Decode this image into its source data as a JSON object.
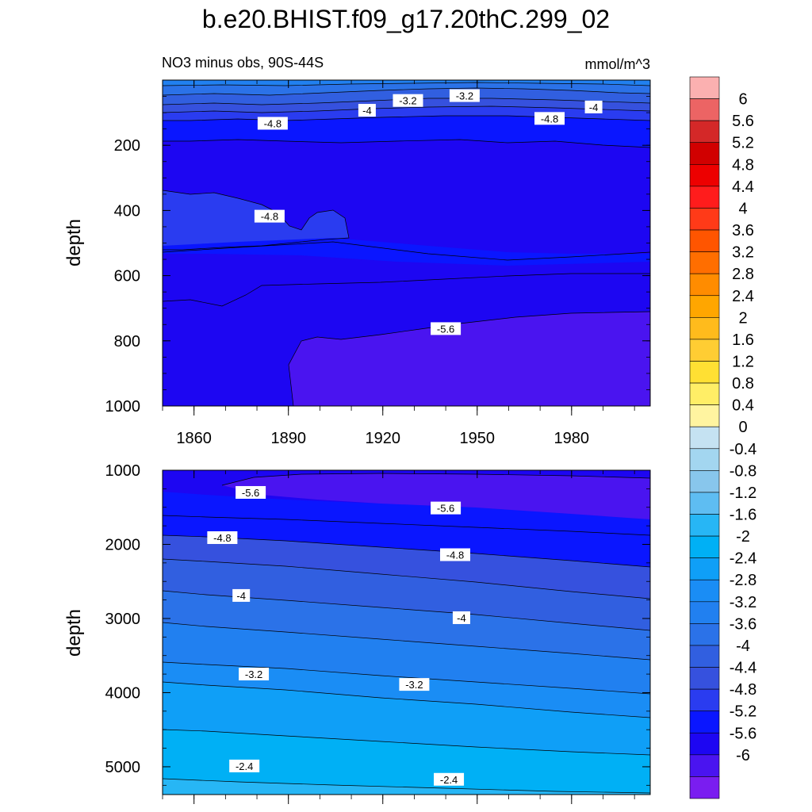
{
  "title": "b.e20.BHIST.f09_g17.20thC.299_02",
  "left_string": "NO3 minus obs, 90S-44S",
  "right_string": "mmol/m^3",
  "chart_data": [
    {
      "type": "heatmap",
      "panel": "upper",
      "ylabel": "depth",
      "y_reversed": true,
      "ylim": [
        1000,
        0
      ],
      "xlim": [
        1850,
        2005
      ],
      "x_ticks": [
        1860,
        1890,
        1920,
        1950,
        1980
      ],
      "y_ticks": [
        200,
        400,
        600,
        800,
        1000
      ],
      "contour_labels": [
        {
          "text": "-3.2",
          "x": 1928,
          "y": 65
        },
        {
          "text": "-3.2",
          "x": 1946,
          "y": 50
        },
        {
          "text": "-4",
          "x": 1915,
          "y": 95
        },
        {
          "text": "-4",
          "x": 1987,
          "y": 85
        },
        {
          "text": "-4.8",
          "x": 1885,
          "y": 135
        },
        {
          "text": "-4.8",
          "x": 1973,
          "y": 120
        },
        {
          "text": "-4.8",
          "x": 1884,
          "y": 420
        },
        {
          "text": "-5.6",
          "x": 1940,
          "y": 765
        }
      ]
    },
    {
      "type": "heatmap",
      "panel": "lower",
      "ylabel": "depth",
      "y_reversed": true,
      "ylim": [
        5375,
        1000
      ],
      "xlim": [
        1850,
        2005
      ],
      "y_ticks": [
        1000,
        2000,
        3000,
        4000,
        5000
      ],
      "contour_labels": [
        {
          "text": "-5.6",
          "x": 1878,
          "y": 1310
        },
        {
          "text": "-5.6",
          "x": 1940,
          "y": 1520
        },
        {
          "text": "-4.8",
          "x": 1869,
          "y": 1920
        },
        {
          "text": "-4.8",
          "x": 1943,
          "y": 2150
        },
        {
          "text": "-4",
          "x": 1875,
          "y": 2700
        },
        {
          "text": "-4",
          "x": 1945,
          "y": 3000
        },
        {
          "text": "-3.2",
          "x": 1879,
          "y": 3760
        },
        {
          "text": "-3.2",
          "x": 1930,
          "y": 3900
        },
        {
          "text": "-2.4",
          "x": 1876,
          "y": 5000
        },
        {
          "text": "-2.4",
          "x": 1941,
          "y": 5180
        }
      ]
    }
  ],
  "colorbar": {
    "colors": [
      "#fbb0b0",
      "#ec6464",
      "#d42828",
      "#d10000",
      "#ed0000",
      "#ff1c1c",
      "#ff3a18",
      "#ff5500",
      "#ff6e00",
      "#ff8c00",
      "#ffa600",
      "#ffbb1c",
      "#ffcd33",
      "#ffe033",
      "#ffee66",
      "#fff4a0",
      "#c5e2f2",
      "#a3d6f0",
      "#88c6ec",
      "#5ebdf2",
      "#27b6f5",
      "#00b0f5",
      "#0f9ff7",
      "#1a8df5",
      "#2180f0",
      "#2b72e8",
      "#315fe0",
      "#3651de",
      "#2a3cf0",
      "#0a16ff",
      "#1d06f2",
      "#4a14f0",
      "#7a1df0"
    ],
    "labels": [
      "6",
      "5.6",
      "5.2",
      "4.8",
      "4.4",
      "4",
      "3.6",
      "3.2",
      "2.8",
      "2.4",
      "2",
      "1.6",
      "1.2",
      "0.8",
      "0.4",
      "0",
      "-0.4",
      "-0.8",
      "-1.2",
      "-1.6",
      "-2",
      "-2.4",
      "-2.8",
      "-3.2",
      "-3.6",
      "-4",
      "-4.4",
      "-4.8",
      "-5.2",
      "-5.6",
      "-6"
    ]
  }
}
